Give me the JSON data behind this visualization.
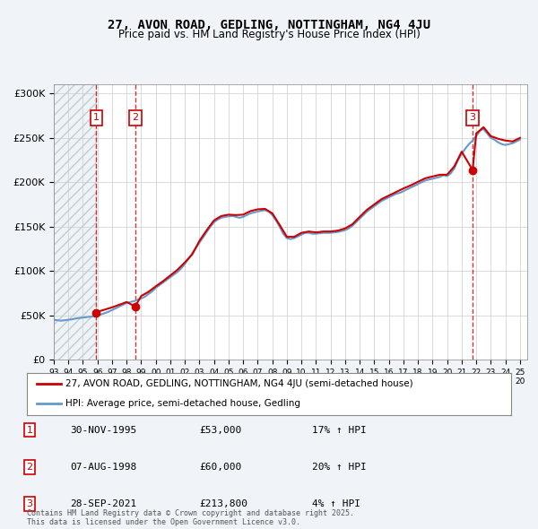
{
  "title_line1": "27, AVON ROAD, GEDLING, NOTTINGHAM, NG4 4JU",
  "title_line2": "Price paid vs. HM Land Registry's House Price Index (HPI)",
  "ylabel_ticks": [
    "£0",
    "£50K",
    "£100K",
    "£150K",
    "£200K",
    "£250K",
    "£300K"
  ],
  "ytick_values": [
    0,
    50000,
    100000,
    150000,
    200000,
    250000,
    300000
  ],
  "ylim": [
    0,
    310000
  ],
  "xlim_start": 1993.0,
  "xlim_end": 2025.5,
  "hatch_end": 1995.917,
  "sale1_date": 1995.917,
  "sale2_date": 1998.583,
  "sale3_date": 2021.75,
  "sale1_price": 53000,
  "sale2_price": 60000,
  "sale3_price": 213800,
  "sale1_label": "1",
  "sale2_label": "2",
  "sale3_label": "3",
  "sale1_info": "30-NOV-1995    £53,000    17% ↑ HPI",
  "sale2_info": "07-AUG-1998    £60,000    20% ↑ HPI",
  "sale3_info": "28-SEP-2021    £213,800    4% ↑ HPI",
  "legend_line1": "27, AVON ROAD, GEDLING, NOTTINGHAM, NG4 4JU (semi-detached house)",
  "legend_line2": "HPI: Average price, semi-detached house, Gedling",
  "footer": "Contains HM Land Registry data © Crown copyright and database right 2025.\nThis data is licensed under the Open Government Licence v3.0.",
  "line_color_property": "#cc0000",
  "line_color_hpi": "#6699cc",
  "background_color": "#f0f4f8",
  "plot_bg_color": "#ffffff",
  "hatch_color": "#cccccc",
  "grid_color": "#cccccc",
  "hpi_data_x": [
    1993.0,
    1993.25,
    1993.5,
    1993.75,
    1994.0,
    1994.25,
    1994.5,
    1994.75,
    1995.0,
    1995.25,
    1995.5,
    1995.75,
    1996.0,
    1996.25,
    1996.5,
    1996.75,
    1997.0,
    1997.25,
    1997.5,
    1997.75,
    1998.0,
    1998.25,
    1998.5,
    1998.75,
    1999.0,
    1999.25,
    1999.5,
    1999.75,
    2000.0,
    2000.25,
    2000.5,
    2000.75,
    2001.0,
    2001.25,
    2001.5,
    2001.75,
    2002.0,
    2002.25,
    2002.5,
    2002.75,
    2003.0,
    2003.25,
    2003.5,
    2003.75,
    2004.0,
    2004.25,
    2004.5,
    2004.75,
    2005.0,
    2005.25,
    2005.5,
    2005.75,
    2006.0,
    2006.25,
    2006.5,
    2006.75,
    2007.0,
    2007.25,
    2007.5,
    2007.75,
    2008.0,
    2008.25,
    2008.5,
    2008.75,
    2009.0,
    2009.25,
    2009.5,
    2009.75,
    2010.0,
    2010.25,
    2010.5,
    2010.75,
    2011.0,
    2011.25,
    2011.5,
    2011.75,
    2012.0,
    2012.25,
    2012.5,
    2012.75,
    2013.0,
    2013.25,
    2013.5,
    2013.75,
    2014.0,
    2014.25,
    2014.5,
    2014.75,
    2015.0,
    2015.25,
    2015.5,
    2015.75,
    2016.0,
    2016.25,
    2016.5,
    2016.75,
    2017.0,
    2017.25,
    2017.5,
    2017.75,
    2018.0,
    2018.25,
    2018.5,
    2018.75,
    2019.0,
    2019.25,
    2019.5,
    2019.75,
    2020.0,
    2020.25,
    2020.5,
    2020.75,
    2021.0,
    2021.25,
    2021.5,
    2021.75,
    2022.0,
    2022.25,
    2022.5,
    2022.75,
    2023.0,
    2023.25,
    2023.5,
    2023.75,
    2024.0,
    2024.25,
    2024.5,
    2024.75,
    2025.0
  ],
  "hpi_data_y": [
    45000,
    44500,
    44000,
    44500,
    45000,
    45500,
    46500,
    47000,
    47500,
    48000,
    48500,
    49000,
    50000,
    51000,
    52500,
    54000,
    56000,
    58000,
    60000,
    62000,
    64000,
    65000,
    66000,
    67500,
    69000,
    71000,
    74000,
    77000,
    81000,
    84000,
    87000,
    90000,
    93000,
    96000,
    99000,
    103000,
    108000,
    114000,
    120000,
    126000,
    132000,
    138000,
    144000,
    150000,
    155000,
    158000,
    160000,
    161000,
    161500,
    162000,
    161000,
    160000,
    161000,
    163000,
    165000,
    166000,
    167000,
    168000,
    168500,
    167000,
    163000,
    157000,
    150000,
    142000,
    137000,
    136000,
    137000,
    139000,
    141000,
    143000,
    143000,
    142000,
    142000,
    142500,
    143000,
    143000,
    143000,
    143500,
    144000,
    145000,
    146000,
    148000,
    151000,
    155000,
    159000,
    163000,
    167000,
    170000,
    173000,
    176000,
    179000,
    181000,
    183000,
    185000,
    187000,
    188000,
    190000,
    192000,
    194000,
    196000,
    198000,
    200000,
    202000,
    203000,
    204000,
    205000,
    206000,
    208000,
    207000,
    210000,
    216000,
    225000,
    232000,
    238000,
    243000,
    247000,
    252000,
    258000,
    260000,
    255000,
    250000,
    248000,
    245000,
    243000,
    242000,
    243000,
    244000,
    246000,
    248000
  ],
  "prop_data_x": [
    1995.917,
    1996.0,
    1996.5,
    1997.0,
    1997.5,
    1998.0,
    1998.583,
    1999.0,
    1999.5,
    2000.0,
    2000.5,
    2001.0,
    2001.5,
    2002.0,
    2002.5,
    2003.0,
    2003.5,
    2004.0,
    2004.5,
    2005.0,
    2005.5,
    2006.0,
    2006.5,
    2007.0,
    2007.5,
    2008.0,
    2008.5,
    2009.0,
    2009.5,
    2010.0,
    2010.5,
    2011.0,
    2011.5,
    2012.0,
    2012.5,
    2013.0,
    2013.5,
    2014.0,
    2014.5,
    2015.0,
    2015.5,
    2016.0,
    2016.5,
    2017.0,
    2017.5,
    2018.0,
    2018.5,
    2019.0,
    2019.5,
    2020.0,
    2020.5,
    2021.0,
    2021.75,
    2022.0,
    2022.5,
    2023.0,
    2023.5,
    2024.0,
    2024.5,
    2025.0
  ],
  "prop_data_y": [
    53000,
    54000,
    56500,
    59000,
    62000,
    65000,
    60000,
    71800,
    76500,
    82700,
    88500,
    95000,
    101500,
    109800,
    118500,
    134000,
    146000,
    157000,
    162000,
    163500,
    163000,
    163500,
    167500,
    169500,
    170000,
    165000,
    152000,
    138500,
    138500,
    143000,
    144500,
    143500,
    144500,
    144500,
    145500,
    148000,
    152700,
    161000,
    169000,
    175000,
    181000,
    185000,
    189000,
    193000,
    196500,
    200500,
    204500,
    206500,
    208500,
    208500,
    218000,
    234500,
    213800,
    255000,
    262000,
    252000,
    249000,
    247000,
    246000,
    250000
  ],
  "xtick_years": [
    1993,
    1994,
    1995,
    1996,
    1997,
    1998,
    1999,
    2000,
    2001,
    2002,
    2003,
    2004,
    2005,
    2006,
    2007,
    2008,
    2009,
    2010,
    2011,
    2012,
    2013,
    2014,
    2015,
    2016,
    2017,
    2018,
    2019,
    2020,
    2021,
    2022,
    2023,
    2024,
    2025
  ]
}
